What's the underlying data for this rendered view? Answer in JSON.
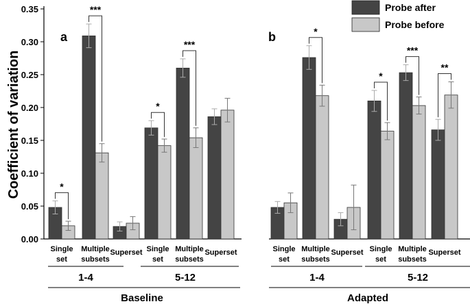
{
  "chart_data": {
    "type": "bar",
    "ylabel": "Coefficient of variation",
    "ylim": [
      0,
      0.35
    ],
    "yticks": [
      "0.00",
      "0.05",
      "0.10",
      "0.15",
      "0.20",
      "0.25",
      "0.30",
      "0.35"
    ],
    "legend": {
      "position": "top-right",
      "entries": [
        {
          "name": "Probe after",
          "color": "#444444"
        },
        {
          "name": "Probe before",
          "color": "#c8c8c8"
        }
      ]
    },
    "panels": [
      {
        "letter": "a",
        "condition": "Baseline",
        "groups": [
          {
            "label": "1-4",
            "categories": [
              {
                "label_lines": [
                  "Single",
                  "set"
                ],
                "after": 0.048,
                "after_err": 0.01,
                "before": 0.02,
                "before_err": 0.007,
                "sig": "*"
              },
              {
                "label_lines": [
                  "Multiple",
                  "subsets"
                ],
                "after": 0.309,
                "after_err": 0.018,
                "before": 0.131,
                "before_err": 0.014,
                "sig": "***"
              },
              {
                "label_lines": [
                  "Superset"
                ],
                "after": 0.019,
                "after_err": 0.007,
                "before": 0.024,
                "before_err": 0.01,
                "sig": ""
              }
            ]
          },
          {
            "label": "5-12",
            "categories": [
              {
                "label_lines": [
                  "Single",
                  "set"
                ],
                "after": 0.169,
                "after_err": 0.011,
                "before": 0.142,
                "before_err": 0.01,
                "sig": "*"
              },
              {
                "label_lines": [
                  "Multiple",
                  "subsets"
                ],
                "after": 0.26,
                "after_err": 0.014,
                "before": 0.154,
                "before_err": 0.015,
                "sig": "***"
              },
              {
                "label_lines": [
                  "Superset"
                ],
                "after": 0.186,
                "after_err": 0.012,
                "before": 0.196,
                "before_err": 0.018,
                "sig": ""
              }
            ]
          }
        ]
      },
      {
        "letter": "b",
        "condition": "Adapted",
        "groups": [
          {
            "label": "1-4",
            "categories": [
              {
                "label_lines": [
                  "Single",
                  "set"
                ],
                "after": 0.048,
                "after_err": 0.009,
                "before": 0.055,
                "before_err": 0.015,
                "sig": ""
              },
              {
                "label_lines": [
                  "Multiple",
                  "subsets"
                ],
                "after": 0.276,
                "after_err": 0.018,
                "before": 0.218,
                "before_err": 0.016,
                "sig": "*"
              },
              {
                "label_lines": [
                  "Superset"
                ],
                "after": 0.03,
                "after_err": 0.01,
                "before": 0.048,
                "before_err": 0.034,
                "sig": ""
              }
            ]
          },
          {
            "label": "5-12",
            "categories": [
              {
                "label_lines": [
                  "Single",
                  "set"
                ],
                "after": 0.21,
                "after_err": 0.016,
                "before": 0.164,
                "before_err": 0.013,
                "sig": "*"
              },
              {
                "label_lines": [
                  "Multiple",
                  "subsets"
                ],
                "after": 0.253,
                "after_err": 0.012,
                "before": 0.203,
                "before_err": 0.013,
                "sig": "***"
              },
              {
                "label_lines": [
                  "Superset"
                ],
                "after": 0.166,
                "after_err": 0.016,
                "before": 0.219,
                "before_err": 0.02,
                "sig": "**"
              }
            ]
          }
        ]
      }
    ]
  }
}
